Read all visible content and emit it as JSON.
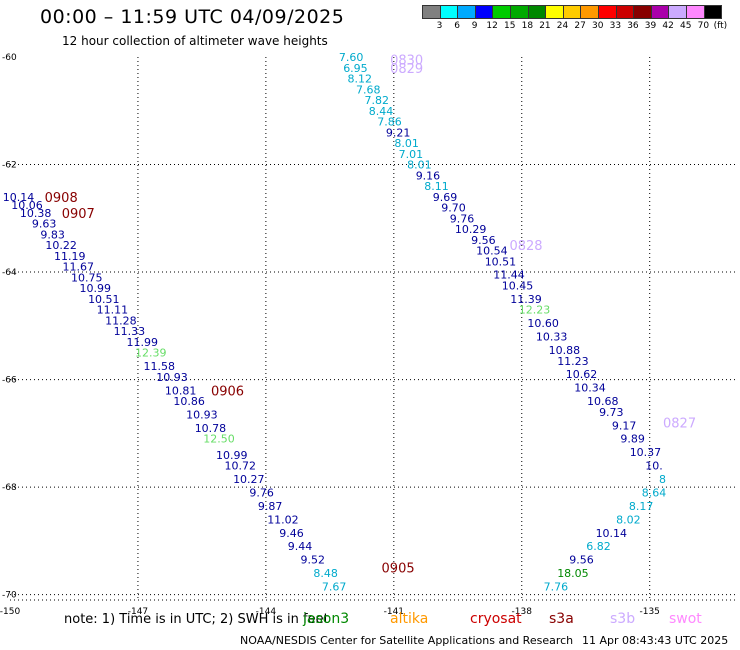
{
  "title": "00:00 – 11:59 UTC 04/09/2025",
  "subtitle": "12 hour collection of altimeter wave heights",
  "color_scale": {
    "unit": "(ft)",
    "ticks": [
      "3",
      "6",
      "9",
      "12",
      "15",
      "18",
      "21",
      "24",
      "27",
      "30",
      "33",
      "36",
      "39",
      "42",
      "45",
      "70"
    ],
    "colors": [
      "#808080",
      "#00ffff",
      "#00aaff",
      "#0000ff",
      "#00cc00",
      "#00aa00",
      "#008800",
      "#ffff00",
      "#ffcc00",
      "#ff9900",
      "#ff0000",
      "#cc0000",
      "#880000",
      "#aa00aa",
      "#ccaaff",
      "#ff88ff",
      "#000000"
    ]
  },
  "footer": {
    "note": "note:  1) Time is in UTC; 2) SWH is in feet",
    "satellites": [
      {
        "name": "jason3",
        "color": "#008800"
      },
      {
        "name": "altika",
        "color": "#ff9900"
      },
      {
        "name": "cryosat",
        "color": "#cc0000"
      },
      {
        "name": "s3a",
        "color": "#880000"
      },
      {
        "name": "s3b",
        "color": "#ccaaff"
      },
      {
        "name": "swot",
        "color": "#ff88ff"
      }
    ],
    "credit": "NOAA/NESDIS Center for Satellite Applications and Research",
    "timestamp": "11 Apr 08:43:43 UTC 2025"
  },
  "chart_data": {
    "type": "scatter",
    "xlim": [
      -150,
      -133
    ],
    "ylim": [
      -70.1,
      -60
    ],
    "x_ticks": [
      "-150",
      "-147",
      "-144",
      "-141",
      "-138",
      "-135"
    ],
    "y_ticks": [
      "-60",
      "-62",
      "-64",
      "-66",
      "-68",
      "-70"
    ],
    "grid": true,
    "tracks": [
      {
        "name": "s3a",
        "time_labels": [
          {
            "text": "0908",
            "x": -148.8,
            "y": -62.6
          },
          {
            "text": "0907",
            "x": -148.4,
            "y": -62.9
          },
          {
            "text": "0906",
            "x": -144.9,
            "y": -66.2
          },
          {
            "text": "0905",
            "x": -140.9,
            "y": -69.5
          }
        ]
      },
      {
        "name": "s3b",
        "time_labels": [
          {
            "text": "0830",
            "x": -140.7,
            "y": -60.05
          },
          {
            "text": "0829",
            "x": -140.7,
            "y": -60.2
          },
          {
            "text": "0828",
            "x": -137.9,
            "y": -63.5
          },
          {
            "text": "0827",
            "x": -134.3,
            "y": -66.8
          }
        ]
      }
    ],
    "points": [
      {
        "label": "10.14",
        "x": -149.8,
        "y": -62.6,
        "color": "#000099"
      },
      {
        "label": "10.06",
        "x": -149.6,
        "y": -62.75,
        "color": "#000099"
      },
      {
        "label": "10.38",
        "x": -149.4,
        "y": -62.9,
        "color": "#000099"
      },
      {
        "label": "9.63",
        "x": -149.2,
        "y": -63.1,
        "color": "#000099"
      },
      {
        "label": "9.83",
        "x": -149.0,
        "y": -63.3,
        "color": "#000099"
      },
      {
        "label": "10.22",
        "x": -148.8,
        "y": -63.5,
        "color": "#000099"
      },
      {
        "label": "11.19",
        "x": -148.6,
        "y": -63.7,
        "color": "#000099"
      },
      {
        "label": "11.67",
        "x": -148.4,
        "y": -63.9,
        "color": "#000099"
      },
      {
        "label": "10.75",
        "x": -148.2,
        "y": -64.1,
        "color": "#000099"
      },
      {
        "label": "10.99",
        "x": -148.0,
        "y": -64.3,
        "color": "#000099"
      },
      {
        "label": "10.51",
        "x": -147.8,
        "y": -64.5,
        "color": "#000099"
      },
      {
        "label": "11.11",
        "x": -147.6,
        "y": -64.7,
        "color": "#000099"
      },
      {
        "label": "11.28",
        "x": -147.4,
        "y": -64.9,
        "color": "#000099"
      },
      {
        "label": "11.33",
        "x": -147.2,
        "y": -65.1,
        "color": "#000099"
      },
      {
        "label": "11.99",
        "x": -146.9,
        "y": -65.3,
        "color": "#000099"
      },
      {
        "label": "12.39",
        "x": -146.7,
        "y": -65.5,
        "color": "#66dd66"
      },
      {
        "label": "11.58",
        "x": -146.5,
        "y": -65.75,
        "color": "#000099"
      },
      {
        "label": "10.93",
        "x": -146.2,
        "y": -65.95,
        "color": "#000099"
      },
      {
        "label": "10.81",
        "x": -146.0,
        "y": -66.2,
        "color": "#000099"
      },
      {
        "label": "10.86",
        "x": -145.8,
        "y": -66.4,
        "color": "#000099"
      },
      {
        "label": "10.93",
        "x": -145.5,
        "y": -66.65,
        "color": "#000099"
      },
      {
        "label": "10.78",
        "x": -145.3,
        "y": -66.9,
        "color": "#000099"
      },
      {
        "label": "12.50",
        "x": -145.1,
        "y": -67.1,
        "color": "#66dd66"
      },
      {
        "label": "10.99",
        "x": -144.8,
        "y": -67.4,
        "color": "#000099"
      },
      {
        "label": "10.72",
        "x": -144.6,
        "y": -67.6,
        "color": "#000099"
      },
      {
        "label": "10.27",
        "x": -144.4,
        "y": -67.85,
        "color": "#000099"
      },
      {
        "label": "9.76",
        "x": -144.1,
        "y": -68.1,
        "color": "#000099"
      },
      {
        "label": "9.87",
        "x": -143.9,
        "y": -68.35,
        "color": "#000099"
      },
      {
        "label": "11.02",
        "x": -143.6,
        "y": -68.6,
        "color": "#000099"
      },
      {
        "label": "9.46",
        "x": -143.4,
        "y": -68.85,
        "color": "#000099"
      },
      {
        "label": "9.44",
        "x": -143.2,
        "y": -69.1,
        "color": "#000099"
      },
      {
        "label": "9.52",
        "x": -142.9,
        "y": -69.35,
        "color": "#000099"
      },
      {
        "label": "8.48",
        "x": -142.6,
        "y": -69.6,
        "color": "#00aacc"
      },
      {
        "label": "7.67",
        "x": -142.4,
        "y": -69.85,
        "color": "#00aacc"
      },
      {
        "label": "7.60",
        "x": -142.0,
        "y": -60.0,
        "color": "#00aacc"
      },
      {
        "label": "6.95",
        "x": -141.9,
        "y": -60.2,
        "color": "#00aacc"
      },
      {
        "label": "8.12",
        "x": -141.8,
        "y": -60.4,
        "color": "#00aacc"
      },
      {
        "label": "7.68",
        "x": -141.6,
        "y": -60.6,
        "color": "#00aacc"
      },
      {
        "label": "7.82",
        "x": -141.4,
        "y": -60.8,
        "color": "#00aacc"
      },
      {
        "label": "8.44",
        "x": -141.3,
        "y": -61.0,
        "color": "#00aacc"
      },
      {
        "label": "7.86",
        "x": -141.1,
        "y": -61.2,
        "color": "#00aacc"
      },
      {
        "label": "9.21",
        "x": -140.9,
        "y": -61.4,
        "color": "#000099"
      },
      {
        "label": "8.01",
        "x": -140.7,
        "y": -61.6,
        "color": "#00aacc"
      },
      {
        "label": "7.01",
        "x": -140.6,
        "y": -61.8,
        "color": "#00aacc"
      },
      {
        "label": "8.01",
        "x": -140.4,
        "y": -62.0,
        "color": "#00aacc"
      },
      {
        "label": "9.16",
        "x": -140.2,
        "y": -62.2,
        "color": "#000099"
      },
      {
        "label": "8.11",
        "x": -140.0,
        "y": -62.4,
        "color": "#00aacc"
      },
      {
        "label": "9.69",
        "x": -139.8,
        "y": -62.6,
        "color": "#000099"
      },
      {
        "label": "9.70",
        "x": -139.6,
        "y": -62.8,
        "color": "#000099"
      },
      {
        "label": "9.76",
        "x": -139.4,
        "y": -63.0,
        "color": "#000099"
      },
      {
        "label": "10.29",
        "x": -139.2,
        "y": -63.2,
        "color": "#000099"
      },
      {
        "label": "9.56",
        "x": -138.9,
        "y": -63.4,
        "color": "#000099"
      },
      {
        "label": "10.54",
        "x": -138.7,
        "y": -63.6,
        "color": "#000099"
      },
      {
        "label": "10.51",
        "x": -138.5,
        "y": -63.8,
        "color": "#000099"
      },
      {
        "label": "11.44",
        "x": -138.3,
        "y": -64.05,
        "color": "#000099"
      },
      {
        "label": "10.45",
        "x": -138.1,
        "y": -64.25,
        "color": "#000099"
      },
      {
        "label": "11.39",
        "x": -137.9,
        "y": -64.5,
        "color": "#000099"
      },
      {
        "label": "12.23",
        "x": -137.7,
        "y": -64.7,
        "color": "#66dd66"
      },
      {
        "label": "10.60",
        "x": -137.5,
        "y": -64.95,
        "color": "#000099"
      },
      {
        "label": "10.33",
        "x": -137.3,
        "y": -65.2,
        "color": "#000099"
      },
      {
        "label": "10.88",
        "x": -137.0,
        "y": -65.45,
        "color": "#000099"
      },
      {
        "label": "11.23",
        "x": -136.8,
        "y": -65.65,
        "color": "#000099"
      },
      {
        "label": "10.62",
        "x": -136.6,
        "y": -65.9,
        "color": "#000099"
      },
      {
        "label": "10.34",
        "x": -136.4,
        "y": -66.15,
        "color": "#000099"
      },
      {
        "label": "10.68",
        "x": -136.1,
        "y": -66.4,
        "color": "#000099"
      },
      {
        "label": "9.73",
        "x": -135.9,
        "y": -66.6,
        "color": "#000099"
      },
      {
        "label": "9.17",
        "x": -135.6,
        "y": -66.85,
        "color": "#000099"
      },
      {
        "label": "9.89",
        "x": -135.4,
        "y": -67.1,
        "color": "#000099"
      },
      {
        "label": "10.37",
        "x": -135.1,
        "y": -67.35,
        "color": "#000099"
      },
      {
        "label": "10.",
        "x": -134.9,
        "y": -67.6,
        "color": "#000099"
      },
      {
        "label": "8",
        "x": -134.7,
        "y": -67.85,
        "color": "#00aacc"
      },
      {
        "label": "8.64",
        "x": -134.9,
        "y": -68.1,
        "color": "#00aacc"
      },
      {
        "label": "8.17",
        "x": -135.2,
        "y": -68.35,
        "color": "#00aacc"
      },
      {
        "label": "8.02",
        "x": -135.5,
        "y": -68.6,
        "color": "#00aacc"
      },
      {
        "label": "10.14",
        "x": -135.9,
        "y": -68.85,
        "color": "#000099"
      },
      {
        "label": "6.82",
        "x": -136.2,
        "y": -69.1,
        "color": "#00aacc"
      },
      {
        "label": "9.56",
        "x": -136.6,
        "y": -69.35,
        "color": "#000099"
      },
      {
        "label": "18.05",
        "x": -136.8,
        "y": -69.6,
        "color": "#008800"
      },
      {
        "label": "7.76",
        "x": -137.2,
        "y": -69.85,
        "color": "#00aacc"
      }
    ]
  }
}
